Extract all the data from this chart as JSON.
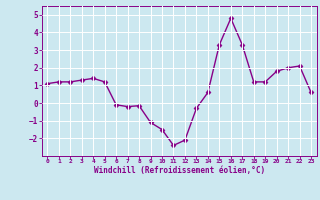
{
  "x": [
    0,
    1,
    2,
    3,
    4,
    5,
    6,
    7,
    8,
    9,
    10,
    11,
    12,
    13,
    14,
    15,
    16,
    17,
    18,
    19,
    20,
    21,
    22,
    23
  ],
  "y": [
    1.1,
    1.2,
    1.2,
    1.3,
    1.4,
    1.2,
    -0.1,
    -0.2,
    -0.15,
    -1.1,
    -1.5,
    -2.4,
    -2.1,
    -0.3,
    0.6,
    3.3,
    4.8,
    3.3,
    1.2,
    1.2,
    1.8,
    2.0,
    2.1,
    0.6
  ],
  "line_color": "#880088",
  "marker": "D",
  "markersize": 2.5,
  "linewidth": 1.0,
  "bg_color": "#cce8f0",
  "grid_color": "#ffffff",
  "xlabel": "Windchill (Refroidissement éolien,°C)",
  "xlabel_color": "#880088",
  "tick_color": "#880088",
  "ylim": [
    -3,
    5.5
  ],
  "yticks": [
    -2,
    -1,
    0,
    1,
    2,
    3,
    4,
    5
  ],
  "xlim": [
    -0.5,
    23.5
  ],
  "xticks": [
    0,
    1,
    2,
    3,
    4,
    5,
    6,
    7,
    8,
    9,
    10,
    11,
    12,
    13,
    14,
    15,
    16,
    17,
    18,
    19,
    20,
    21,
    22,
    23
  ]
}
